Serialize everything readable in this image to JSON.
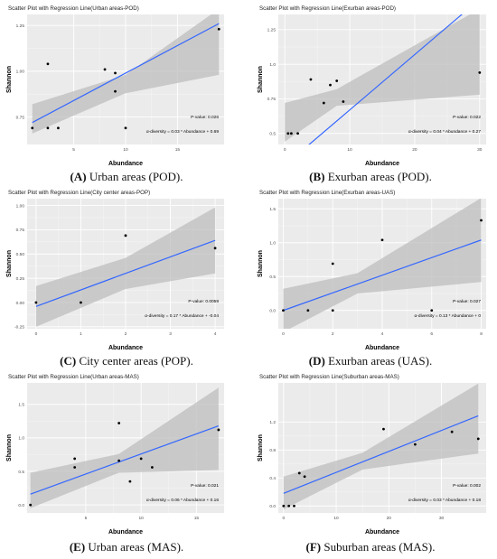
{
  "panels": [
    {
      "caption_letter": "(A)",
      "caption_text": " Urban areas (POD).",
      "chart_data": {
        "type": "scatter",
        "title": "Scatter Plot with Regression Line(Urban areas-POD)",
        "xlabel": "Abundance",
        "ylabel": "Shannon",
        "xlim": [
          0.5,
          19.5
        ],
        "ylim": [
          0.6,
          1.31
        ],
        "xticks": [
          5,
          10,
          15
        ],
        "yticks": [
          0.75,
          1.0,
          1.25
        ],
        "ytick_labels": [
          "0.75",
          "1.00",
          "1.25"
        ],
        "points": [
          [
            1,
            0.69
          ],
          [
            2.5,
            0.69
          ],
          [
            3.5,
            0.69
          ],
          [
            2.5,
            1.04
          ],
          [
            8,
            1.01
          ],
          [
            9,
            0.99
          ],
          [
            9,
            0.89
          ],
          [
            10,
            0.69
          ],
          [
            19,
            1.23
          ]
        ],
        "regression": {
          "slope": 0.03,
          "intercept": 0.69
        },
        "band": [
          [
            1,
            0.66,
            0.82
          ],
          [
            10,
            0.88,
            0.98
          ],
          [
            19,
            0.98,
            1.34
          ]
        ],
        "p_value_label": "P-value: 0.026",
        "equation_label": "α-diversity = 0.03 * Abundance + 0.69"
      }
    },
    {
      "caption_letter": "(B)",
      "caption_text": " Exurban areas (POD).",
      "chart_data": {
        "type": "scatter",
        "title": "Scatter Plot with Regression Line(Exurban areas-POD)",
        "xlabel": "Abundance",
        "ylabel": "Shannon",
        "xlim": [
          -1,
          31
        ],
        "ylim": [
          0.42,
          1.36
        ],
        "xticks": [
          0,
          10,
          20,
          30
        ],
        "yticks": [
          0.5,
          0.75,
          1.0,
          1.25
        ],
        "ytick_labels": [
          "0.5",
          "0.75",
          "1.0",
          "1.25"
        ],
        "points": [
          [
            0.5,
            0.5
          ],
          [
            1,
            0.5
          ],
          [
            2,
            0.5
          ],
          [
            4,
            0.89
          ],
          [
            6,
            0.72
          ],
          [
            7,
            0.85
          ],
          [
            8,
            0.88
          ],
          [
            9,
            0.73
          ],
          [
            30,
            0.94
          ]
        ],
        "regression": {
          "slope": 0.04,
          "intercept": 0.27
        },
        "band": [
          [
            0,
            0.44,
            0.72
          ],
          [
            8,
            0.7,
            0.82
          ],
          [
            30,
            0.78,
            1.4
          ]
        ],
        "p_value_label": "P-value: 0.022",
        "equation_label": "α-diversity = 0.04 * Abundance + 0.27"
      }
    },
    {
      "caption_letter": "(C)",
      "caption_text": " City center areas (POP).",
      "chart_data": {
        "type": "scatter",
        "title": "Scatter Plot with Regression Line(City center areas-POP)",
        "xlabel": "Abundance",
        "ylabel": "Shannon",
        "xlim": [
          -0.2,
          4.2
        ],
        "ylim": [
          -0.27,
          1.07
        ],
        "xticks": [
          0,
          1,
          2,
          3,
          4
        ],
        "yticks": [
          -0.25,
          0.0,
          0.25,
          0.5,
          0.75,
          1.0
        ],
        "ytick_labels": [
          "-0.25",
          "0.00",
          "0.25",
          "0.50",
          "0.75",
          "1.00"
        ],
        "points": [
          [
            0,
            0.0
          ],
          [
            1,
            0.0
          ],
          [
            2,
            0.69
          ],
          [
            4,
            0.56
          ]
        ],
        "regression": {
          "slope": 0.17,
          "intercept": -0.04
        },
        "band": [
          [
            0,
            -0.25,
            0.17
          ],
          [
            2,
            0.14,
            0.46
          ],
          [
            4,
            0.3,
            0.98
          ]
        ],
        "p_value_label": "P-value: 0.0059",
        "equation_label": "α-diversity = 0.17 * Abundance + -0.04"
      }
    },
    {
      "caption_letter": "(D)",
      "caption_text": " Exurban areas (UAS).",
      "chart_data": {
        "type": "scatter",
        "title": "Scatter Plot with Regression Line(Exurban areas-UAS)",
        "xlabel": "Abundance",
        "ylabel": "Shannon",
        "xlim": [
          -0.2,
          8.2
        ],
        "ylim": [
          -0.27,
          1.65
        ],
        "xticks": [
          0,
          2,
          4,
          6,
          8
        ],
        "yticks": [
          0.0,
          0.5,
          1.0,
          1.5
        ],
        "ytick_labels": [
          "0.0",
          "0.5",
          "1.0",
          "1.5"
        ],
        "points": [
          [
            0,
            0.0
          ],
          [
            1,
            0.0
          ],
          [
            2,
            0.0
          ],
          [
            2,
            0.69
          ],
          [
            4,
            1.04
          ],
          [
            6,
            0.0
          ],
          [
            8,
            1.33
          ]
        ],
        "regression": {
          "slope": 0.13,
          "intercept": 0.0
        },
        "band": [
          [
            0,
            -0.32,
            0.32
          ],
          [
            3,
            0.25,
            0.55
          ],
          [
            8,
            0.42,
            1.66
          ]
        ],
        "p_value_label": "P-value: 0.027",
        "equation_label": "α-diversity = 0.13 * Abundance + 0"
      }
    },
    {
      "caption_letter": "(E)",
      "caption_text": " Urban areas (MAS).",
      "chart_data": {
        "type": "scatter",
        "title": "Scatter Plot with Regression Line(Urban areas-MAS)",
        "xlabel": "Abundance",
        "ylabel": "Shannon",
        "xlim": [
          -0.3,
          17.5
        ],
        "ylim": [
          -0.12,
          1.82
        ],
        "xticks": [
          5,
          10,
          15
        ],
        "yticks": [
          0.0,
          0.5,
          1.0,
          1.5
        ],
        "ytick_labels": [
          "0.0",
          "0.5",
          "1.0",
          "1.5"
        ],
        "points": [
          [
            0,
            0.0
          ],
          [
            4,
            0.69
          ],
          [
            4,
            0.56
          ],
          [
            8,
            1.22
          ],
          [
            8,
            0.66
          ],
          [
            9,
            0.35
          ],
          [
            10,
            0.69
          ],
          [
            11,
            0.56
          ],
          [
            17,
            1.12
          ]
        ],
        "regression": {
          "slope": 0.06,
          "intercept": 0.16
        },
        "band": [
          [
            0,
            -0.05,
            0.48
          ],
          [
            8,
            0.48,
            0.76
          ],
          [
            17,
            0.52,
            1.75
          ]
        ],
        "p_value_label": "P-value: 0.021",
        "equation_label": "α-diversity = 0.06 * Abundance + 0.16"
      }
    },
    {
      "caption_letter": "(F)",
      "caption_text": " Suburban areas (MAS).",
      "chart_data": {
        "type": "scatter",
        "title": "Scatter Plot with Regression Line(Suburban areas-MAS)",
        "xlabel": "Abundance",
        "ylabel": "Shannon",
        "xlim": [
          -1,
          38.5
        ],
        "ylim": [
          -0.1,
          1.76
        ],
        "xticks": [
          0,
          10,
          20,
          30
        ],
        "yticks": [
          0.0,
          0.4,
          0.8,
          1.2
        ],
        "ytick_labels": [
          "0.0",
          "0.4",
          "0.8",
          "1.2"
        ],
        "points": [
          [
            0,
            0.0
          ],
          [
            1,
            0.0
          ],
          [
            2,
            0.0
          ],
          [
            3,
            0.47
          ],
          [
            4,
            0.42
          ],
          [
            19,
            1.1
          ],
          [
            25,
            0.88
          ],
          [
            32,
            1.06
          ],
          [
            37,
            0.96
          ]
        ],
        "regression": {
          "slope": 0.03,
          "intercept": 0.18
        },
        "band": [
          [
            0,
            -0.05,
            0.42
          ],
          [
            15,
            0.52,
            0.76
          ],
          [
            37,
            0.75,
            1.75
          ]
        ],
        "p_value_label": "P-value: 0.002",
        "equation_label": "α-diversity = 0.03 * Abundance + 0.18"
      }
    }
  ]
}
